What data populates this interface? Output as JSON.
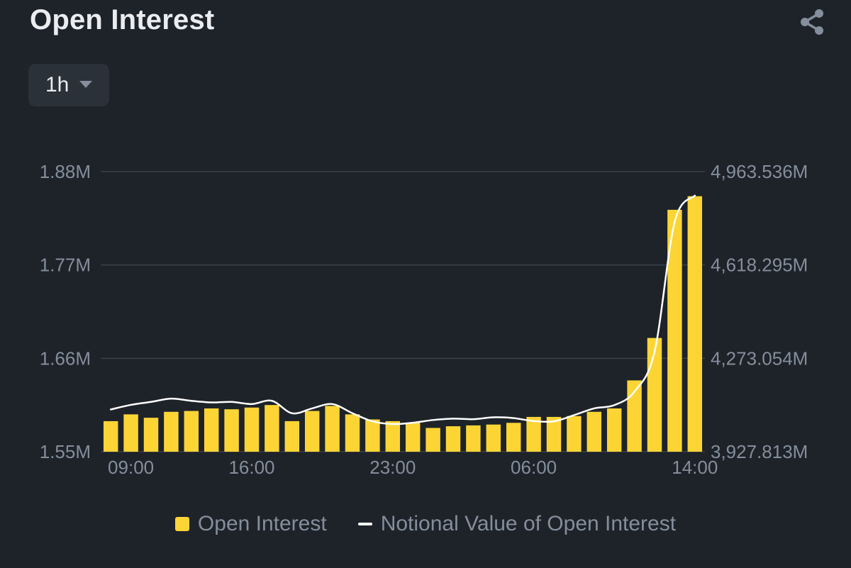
{
  "header": {
    "title": "Open Interest",
    "share_icon": "share-icon"
  },
  "interval_selector": {
    "value": "1h",
    "caret_icon": "caret-down-icon"
  },
  "colors": {
    "background": "#1e2329",
    "bar": "#fcd535",
    "line": "#ffffff",
    "grid": "#3a4049",
    "axis_text": "#848e9c"
  },
  "chart_data": {
    "type": "bar",
    "x_tick_labels": [
      "09:00",
      "16:00",
      "23:00",
      "06:00",
      "14:00"
    ],
    "x_tick_indices": [
      1,
      7,
      14,
      21,
      29
    ],
    "left_axis": {
      "ticks": [
        "1.88M",
        "1.77M",
        "1.66M",
        "1.55M"
      ],
      "tick_values": [
        1.88,
        1.77,
        1.66,
        1.55
      ],
      "ylim": [
        1.55,
        1.88
      ]
    },
    "right_axis": {
      "ticks": [
        "4,963.536M",
        "4,618.295M",
        "4,273.054M",
        "3,927.813M"
      ],
      "tick_values": [
        4963.536,
        4618.295,
        4273.054,
        3927.813
      ],
      "ylim": [
        3927.813,
        4963.536
      ]
    },
    "grid": true,
    "legend_position": "bottom",
    "series": [
      {
        "name": "Open Interest",
        "type": "bar",
        "axis": "left",
        "values": [
          1.586,
          1.594,
          1.59,
          1.597,
          1.598,
          1.601,
          1.6,
          1.602,
          1.605,
          1.586,
          1.598,
          1.604,
          1.594,
          1.588,
          1.586,
          1.584,
          1.578,
          1.58,
          1.581,
          1.582,
          1.584,
          1.591,
          1.591,
          1.592,
          1.597,
          1.601,
          1.634,
          1.684,
          1.835,
          1.851
        ]
      },
      {
        "name": "Notional Value of Open Interest",
        "type": "line",
        "axis": "right",
        "values": [
          4084,
          4101,
          4112,
          4124,
          4116,
          4110,
          4112,
          4104,
          4116,
          4070,
          4088,
          4104,
          4070,
          4040,
          4030,
          4035,
          4045,
          4050,
          4048,
          4055,
          4052,
          4041,
          4040,
          4063,
          4088,
          4100,
          4150,
          4298,
          4778,
          4875
        ]
      }
    ]
  },
  "legend": {
    "items": [
      {
        "label": "Open Interest"
      },
      {
        "label": "Notional Value of Open Interest"
      }
    ]
  }
}
